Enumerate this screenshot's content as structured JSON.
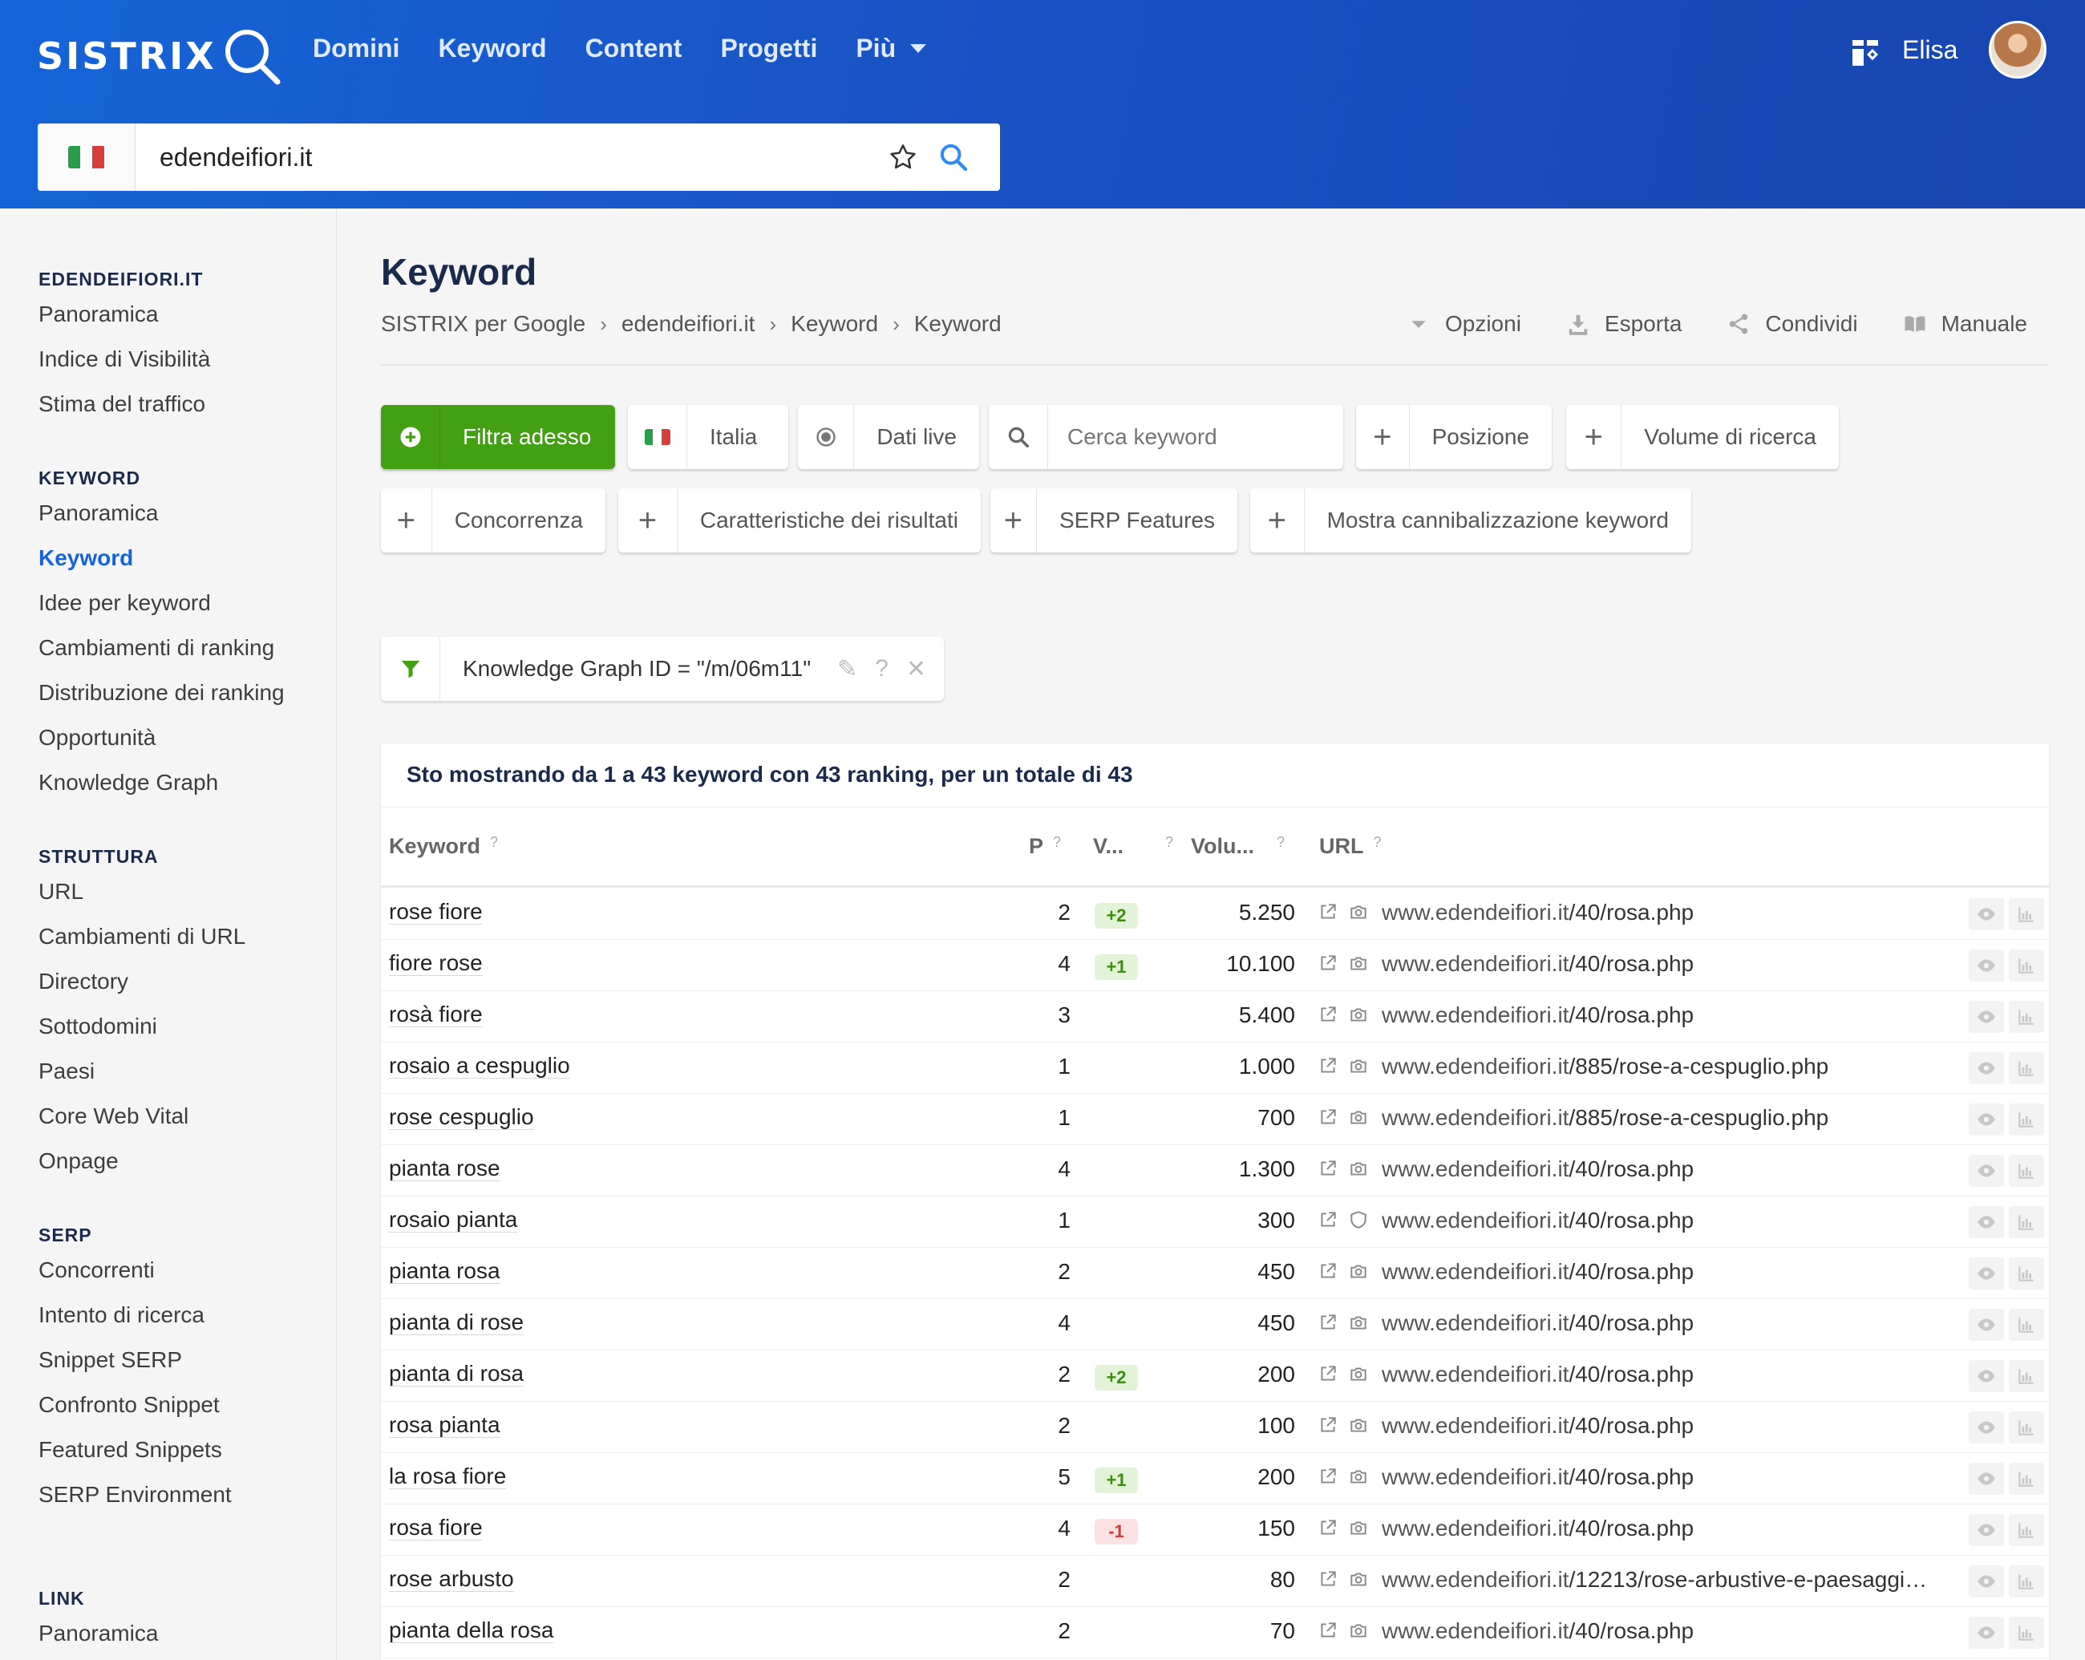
{
  "header": {
    "logo": "SISTRIX",
    "nav": [
      "Domini",
      "Keyword",
      "Content",
      "Progetti",
      "Più"
    ],
    "user": "Elisa"
  },
  "search": {
    "value": "edendeifiori.it"
  },
  "sidebar": {
    "groups": [
      {
        "title": "EDENDEIFIORI.IT",
        "items": [
          "Panoramica",
          "Indice di Visibilità",
          "Stima del traffico"
        ]
      },
      {
        "title": "KEYWORD",
        "items": [
          "Panoramica",
          "Keyword",
          "Idee per keyword",
          "Cambiamenti di ranking",
          "Distribuzione dei ranking",
          "Opportunità",
          "Knowledge Graph"
        ]
      },
      {
        "title": "STRUTTURA",
        "items": [
          "URL",
          "Cambiamenti di URL",
          "Directory",
          "Sottodomini",
          "Paesi",
          "Core Web Vital",
          "Onpage"
        ]
      },
      {
        "title": "SERP",
        "items": [
          "Concorrenti",
          "Intento di ricerca",
          "Snippet SERP",
          "Confronto Snippet",
          "Featured Snippets",
          "SERP Environment"
        ]
      },
      {
        "title": "LINK",
        "items": [
          "Panoramica"
        ]
      }
    ],
    "active": "Keyword"
  },
  "page": {
    "title": "Keyword",
    "breadcrumb": [
      "SISTRIX per Google",
      "edendeifiori.it",
      "Keyword",
      "Keyword"
    ],
    "actions": [
      "Opzioni",
      "Esporta",
      "Condividi",
      "Manuale"
    ]
  },
  "filters": {
    "primary": "Filtra adesso",
    "country": "Italia",
    "live": "Dati live",
    "search_placeholder": "Cerca keyword",
    "position": "Posizione",
    "volume": "Volume di ricerca",
    "competition": "Concorrenza",
    "result_features": "Caratteristiche dei risultati",
    "serp_features": "SERP Features",
    "cannibalization": "Mostra cannibalizzazione keyword",
    "active_filter": "Knowledge Graph ID = \"/m/06m11\""
  },
  "table": {
    "summary": "Sto mostrando da 1 a 43 keyword con 43 ranking, per un totale di 43",
    "columns": {
      "keyword": "Keyword",
      "position": "P",
      "change": "V...",
      "volume": "Volu...",
      "url": "URL",
      "help": "?"
    },
    "rows": [
      {
        "keyword": "rose fiore",
        "position": "2",
        "change": "+2",
        "volume": "5.250",
        "url_domain": "www.edendeifiori.it",
        "url_path": "/40/rosa.php"
      },
      {
        "keyword": "fiore rose",
        "position": "4",
        "change": "+1",
        "volume": "10.100",
        "url_domain": "www.edendeifiori.it",
        "url_path": "/40/rosa.php"
      },
      {
        "keyword": "rosà fiore",
        "position": "3",
        "change": "",
        "volume": "5.400",
        "url_domain": "www.edendeifiori.it",
        "url_path": "/40/rosa.php"
      },
      {
        "keyword": "rosaio a cespuglio",
        "position": "1",
        "change": "",
        "volume": "1.000",
        "url_domain": "www.edendeifiori.it",
        "url_path": "/885/rose-a-cespuglio.php"
      },
      {
        "keyword": "rose cespuglio",
        "position": "1",
        "change": "",
        "volume": "700",
        "url_domain": "www.edendeifiori.it",
        "url_path": "/885/rose-a-cespuglio.php"
      },
      {
        "keyword": "pianta rose",
        "position": "4",
        "change": "",
        "volume": "1.300",
        "url_domain": "www.edendeifiori.it",
        "url_path": "/40/rosa.php"
      },
      {
        "keyword": "rosaio pianta",
        "position": "1",
        "change": "",
        "volume": "300",
        "url_domain": "www.edendeifiori.it",
        "url_path": "/40/rosa.php",
        "shield": true
      },
      {
        "keyword": "pianta rosa",
        "position": "2",
        "change": "",
        "volume": "450",
        "url_domain": "www.edendeifiori.it",
        "url_path": "/40/rosa.php"
      },
      {
        "keyword": "pianta di rose",
        "position": "4",
        "change": "",
        "volume": "450",
        "url_domain": "www.edendeifiori.it",
        "url_path": "/40/rosa.php"
      },
      {
        "keyword": "pianta di rosa",
        "position": "2",
        "change": "+2",
        "volume": "200",
        "url_domain": "www.edendeifiori.it",
        "url_path": "/40/rosa.php"
      },
      {
        "keyword": "rosa pianta",
        "position": "2",
        "change": "",
        "volume": "100",
        "url_domain": "www.edendeifiori.it",
        "url_path": "/40/rosa.php"
      },
      {
        "keyword": "la rosa fiore",
        "position": "5",
        "change": "+1",
        "volume": "200",
        "url_domain": "www.edendeifiori.it",
        "url_path": "/40/rosa.php"
      },
      {
        "keyword": "rosa fiore",
        "position": "4",
        "change": "-1",
        "volume": "150",
        "url_domain": "www.edendeifiori.it",
        "url_path": "/40/rosa.php"
      },
      {
        "keyword": "rose arbusto",
        "position": "2",
        "change": "",
        "volume": "80",
        "url_domain": "www.edendeifiori.it",
        "url_path": "/12213/rose-arbustive-e-paesaggi…"
      },
      {
        "keyword": "pianta della rosa",
        "position": "2",
        "change": "",
        "volume": "70",
        "url_domain": "www.edendeifiori.it",
        "url_path": "/40/rosa.php"
      }
    ]
  },
  "colors": {
    "accent": "#1565d8",
    "header": "#1a55c8",
    "primary_button": "#43a012",
    "positive": "#3a8d10",
    "negative": "#d23b3b"
  }
}
